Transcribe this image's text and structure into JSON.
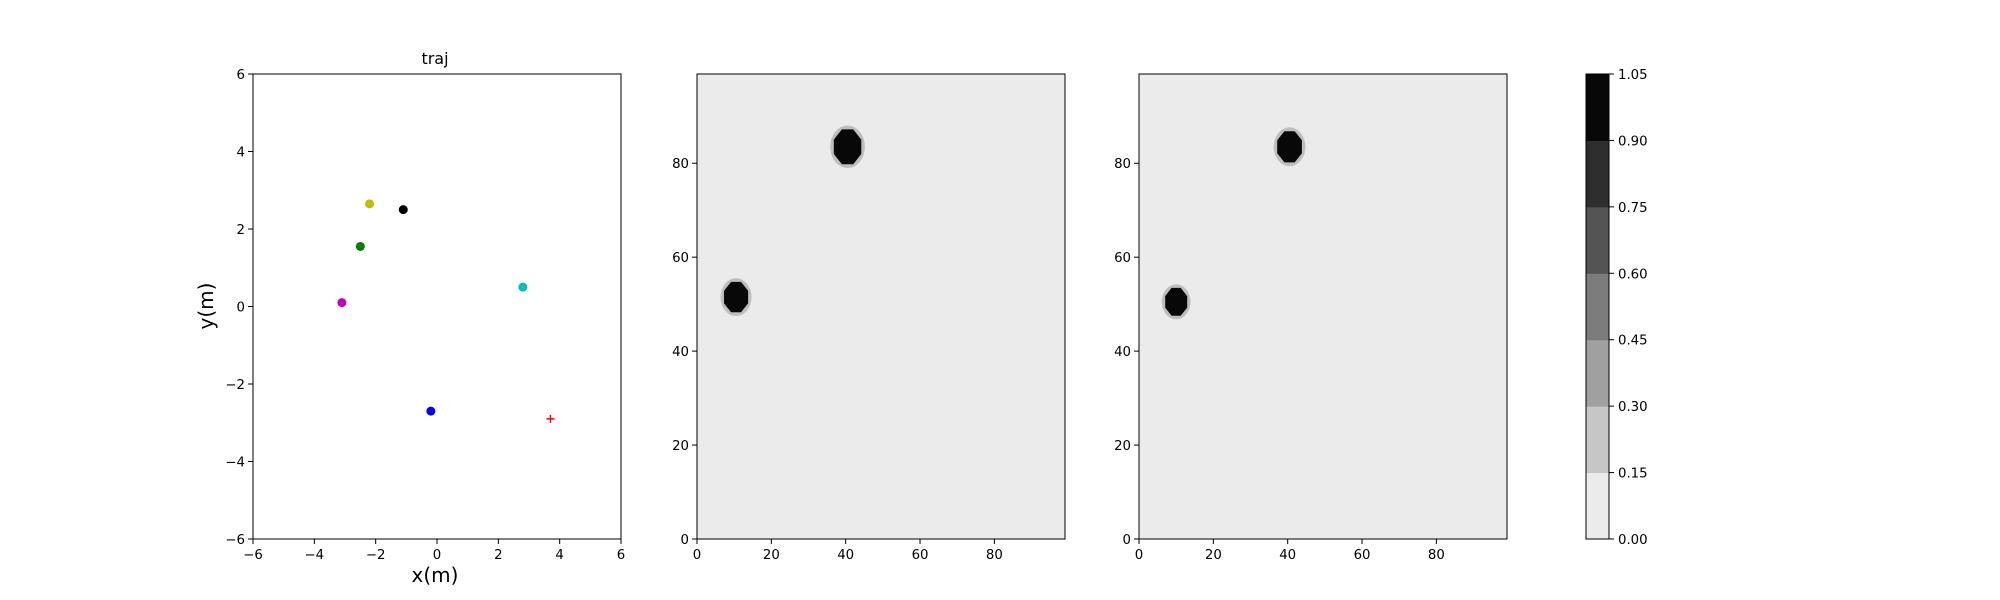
{
  "chart_data": [
    {
      "type": "scatter",
      "title": "traj",
      "xlabel": "x(m)",
      "ylabel": "y(m)",
      "xlim": [
        -6,
        6
      ],
      "ylim": [
        -6,
        6
      ],
      "xticks": [
        -6,
        -4,
        -2,
        0,
        2,
        4,
        6
      ],
      "yticks": [
        -6,
        -4,
        -2,
        0,
        2,
        4,
        6
      ],
      "grid": false,
      "points": [
        {
          "x": -2.2,
          "y": 2.65,
          "color": "#bfbf00",
          "marker": "circle"
        },
        {
          "x": -1.1,
          "y": 2.5,
          "color": "#000000",
          "marker": "circle"
        },
        {
          "x": -2.5,
          "y": 1.55,
          "color": "#008000",
          "marker": "circle"
        },
        {
          "x": -3.1,
          "y": 0.1,
          "color": "#bf00bf",
          "marker": "circle"
        },
        {
          "x": 2.8,
          "y": 0.5,
          "color": "#00bfbf",
          "marker": "circle"
        },
        {
          "x": -0.2,
          "y": -2.7,
          "color": "#0000ff",
          "marker": "circle"
        },
        {
          "x": 3.7,
          "y": -2.9,
          "color": "#ff0000",
          "marker": "plus"
        }
      ]
    },
    {
      "type": "heatmap",
      "xlim": [
        0,
        99
      ],
      "ylim": [
        0,
        99
      ],
      "xticks": [
        0,
        20,
        40,
        60,
        80
      ],
      "yticks": [
        0,
        20,
        40,
        60,
        80
      ],
      "background_value": 0.05,
      "blobs": [
        {
          "cx": 10.5,
          "cy": 51.5,
          "r": 3.5,
          "value": 1.0
        },
        {
          "cx": 40.5,
          "cy": 83.5,
          "r": 4.0,
          "value": 1.0
        }
      ]
    },
    {
      "type": "heatmap",
      "xlim": [
        0,
        99
      ],
      "ylim": [
        0,
        99
      ],
      "xticks": [
        0,
        20,
        40,
        60,
        80
      ],
      "yticks": [
        0,
        20,
        40,
        60,
        80
      ],
      "background_value": 0.05,
      "blobs": [
        {
          "cx": 10,
          "cy": 50.5,
          "r": 3.2,
          "value": 1.0
        },
        {
          "cx": 40.5,
          "cy": 83.5,
          "r": 3.6,
          "value": 1.0
        }
      ]
    },
    {
      "type": "colorbar",
      "ticks": [
        "0.00",
        "0.15",
        "0.30",
        "0.45",
        "0.60",
        "0.75",
        "0.90",
        "1.05"
      ],
      "levels": [
        {
          "from": 0.0,
          "to": 0.15,
          "color": "#ebebeb"
        },
        {
          "from": 0.15,
          "to": 0.3,
          "color": "#c6c6c6"
        },
        {
          "from": 0.3,
          "to": 0.45,
          "color": "#a0a0a0"
        },
        {
          "from": 0.45,
          "to": 0.6,
          "color": "#7b7b7b"
        },
        {
          "from": 0.6,
          "to": 0.75,
          "color": "#545454"
        },
        {
          "from": 0.75,
          "to": 0.9,
          "color": "#2e2e2e"
        },
        {
          "from": 0.9,
          "to": 1.05,
          "color": "#080808"
        }
      ]
    }
  ]
}
